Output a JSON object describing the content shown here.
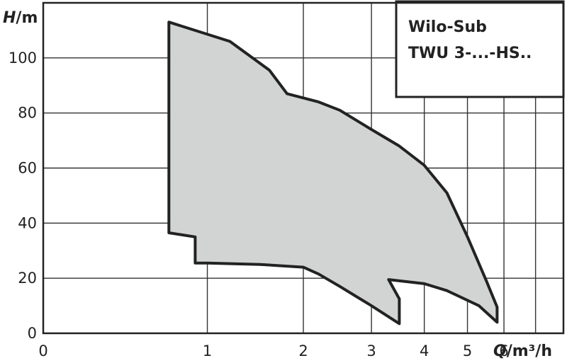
{
  "chart_data": {
    "type": "area",
    "title": "Wilo-Sub TWU 3-...-HS..",
    "title_lines": [
      "Wilo-Sub",
      "TWU 3-...-HS.."
    ],
    "xlabel": {
      "symbol": "Q",
      "unit": "/m³/h"
    },
    "ylabel": {
      "symbol": "H",
      "unit": "/m"
    },
    "x_scale": "logarithmic",
    "xlim": [
      0,
      8
    ],
    "ylim": [
      0,
      120
    ],
    "grid": true,
    "x_ticks": [
      {
        "value": 0,
        "label": "0"
      },
      {
        "value": 1,
        "label": "1"
      },
      {
        "value": 2,
        "label": "2"
      },
      {
        "value": 3,
        "label": "3"
      },
      {
        "value": 4,
        "label": "4"
      },
      {
        "value": 5,
        "label": "5"
      },
      {
        "value": 6,
        "label": "6"
      }
    ],
    "x_minor_grid": [
      7,
      8
    ],
    "y_ticks": [
      {
        "value": 0,
        "label": "0"
      },
      {
        "value": 20,
        "label": "20"
      },
      {
        "value": 40,
        "label": "40"
      },
      {
        "value": 60,
        "label": "60"
      },
      {
        "value": 80,
        "label": "80"
      },
      {
        "value": 100,
        "label": "100"
      }
    ],
    "y_minor_grid": [
      120
    ],
    "region_fill": "#d2d4d4",
    "region_stroke": "#222222",
    "region": [
      [
        0.7,
        113
      ],
      [
        1.2,
        106
      ],
      [
        1.6,
        95.5
      ],
      [
        1.8,
        87
      ],
      [
        2.2,
        84
      ],
      [
        2.5,
        81
      ],
      [
        3.0,
        74
      ],
      [
        3.5,
        68
      ],
      [
        4.0,
        61
      ],
      [
        4.5,
        51
      ],
      [
        5.0,
        35
      ],
      [
        5.5,
        19
      ],
      [
        5.8,
        9.5
      ],
      [
        5.8,
        4
      ],
      [
        5.3,
        10
      ],
      [
        4.5,
        15.5
      ],
      [
        4.0,
        18
      ],
      [
        3.3,
        19.5
      ],
      [
        3.5,
        12.5
      ],
      [
        3.5,
        3.5
      ],
      [
        3.0,
        10
      ],
      [
        2.5,
        17
      ],
      [
        2.2,
        21.5
      ],
      [
        2.0,
        24
      ],
      [
        1.5,
        25
      ],
      [
        1.0,
        25.5
      ],
      [
        0.9,
        25.5
      ],
      [
        0.9,
        35
      ],
      [
        0.7,
        36.5
      ]
    ]
  }
}
